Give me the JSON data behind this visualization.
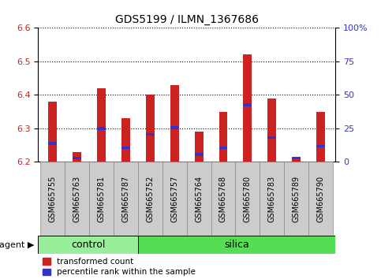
{
  "title": "GDS5199 / ILMN_1367686",
  "samples": [
    "GSM665755",
    "GSM665763",
    "GSM665781",
    "GSM665787",
    "GSM665752",
    "GSM665757",
    "GSM665764",
    "GSM665768",
    "GSM665780",
    "GSM665783",
    "GSM665789",
    "GSM665790"
  ],
  "red_tops": [
    6.38,
    6.23,
    6.42,
    6.33,
    6.4,
    6.43,
    6.29,
    6.35,
    6.52,
    6.39,
    6.21,
    6.35
  ],
  "blue_vals": [
    6.255,
    6.212,
    6.3,
    6.242,
    6.282,
    6.302,
    6.222,
    6.242,
    6.37,
    6.272,
    6.212,
    6.247
  ],
  "baseline": 6.2,
  "ylim": [
    6.2,
    6.6
  ],
  "yticks_left": [
    6.2,
    6.3,
    6.4,
    6.5,
    6.6
  ],
  "yticks_right_vals": [
    0,
    25,
    50,
    75,
    100
  ],
  "y_right_labels": [
    "0",
    "25",
    "50",
    "75",
    "100%"
  ],
  "control_count": 4,
  "silica_count": 8,
  "control_label": "control",
  "silica_label": "silica",
  "agent_label": "agent",
  "legend_red": "transformed count",
  "legend_blue": "percentile rank within the sample",
  "bar_width": 0.35,
  "red_color": "#cc2222",
  "blue_color": "#3333cc",
  "control_bg": "#99ee99",
  "silica_bg": "#55dd55",
  "tick_cell_bg": "#cccccc",
  "white": "#ffffff"
}
